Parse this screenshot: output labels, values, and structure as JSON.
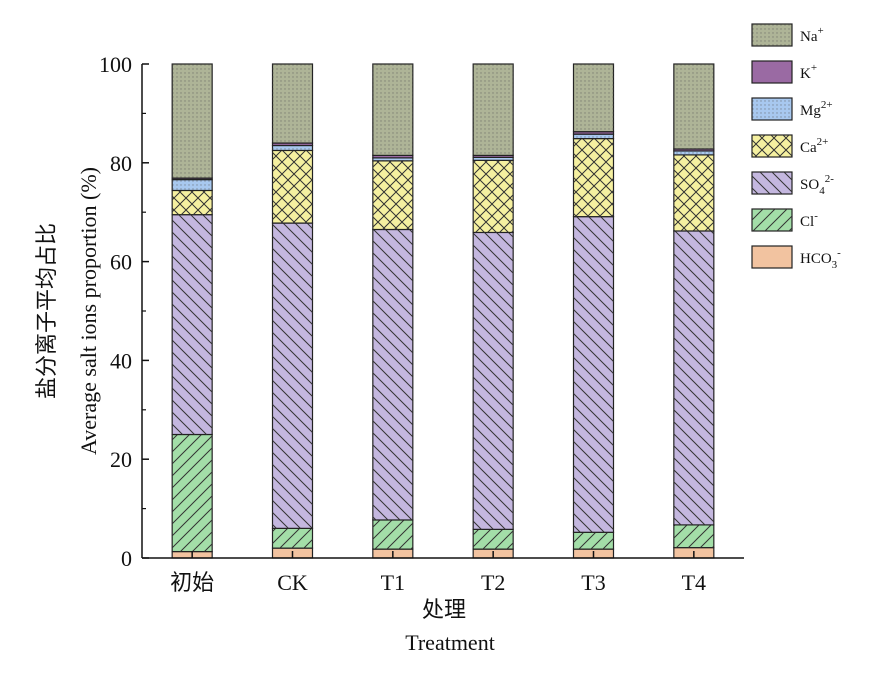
{
  "chart_data": {
    "type": "bar",
    "stacked": true,
    "categories": [
      "初始",
      "CK",
      "T1",
      "T2",
      "T3",
      "T4"
    ],
    "series": [
      {
        "name": "HCO3-",
        "label_base": "HCO",
        "label_sub": "3",
        "label_sup": "-",
        "color": "#f2c3a0",
        "pattern": "none",
        "values": [
          1.3,
          2.0,
          1.8,
          1.8,
          1.8,
          2.1
        ]
      },
      {
        "name": "Cl-",
        "label_base": "Cl",
        "label_sub": "",
        "label_sup": "-",
        "color": "#a3dea8",
        "pattern": "diag-up",
        "values": [
          23.7,
          4.0,
          5.9,
          4.0,
          3.4,
          4.6
        ]
      },
      {
        "name": "SO42-",
        "label_base": "SO",
        "label_sub": "4",
        "label_sup": "2-",
        "color": "#c4b7df",
        "pattern": "diag-down",
        "values": [
          44.5,
          61.8,
          58.8,
          60.1,
          63.9,
          59.5
        ]
      },
      {
        "name": "Ca2+",
        "label_base": "Ca",
        "label_sub": "",
        "label_sup": "2+",
        "color": "#f5f0a0",
        "pattern": "cross",
        "values": [
          4.9,
          14.7,
          13.9,
          14.6,
          15.8,
          15.4
        ]
      },
      {
        "name": "Mg2+",
        "label_base": "Mg",
        "label_sub": "",
        "label_sup": "2+",
        "color": "#a8c8ef",
        "pattern": "dots",
        "values": [
          2.2,
          1.0,
          0.6,
          0.6,
          0.9,
          0.8
        ]
      },
      {
        "name": "K+",
        "label_base": "K",
        "label_sub": "",
        "label_sup": "+",
        "color": "#9a6aa3",
        "pattern": "none",
        "values": [
          0.3,
          0.5,
          0.5,
          0.4,
          0.5,
          0.4
        ]
      },
      {
        "name": "Na+",
        "label_base": "Na",
        "label_sub": "",
        "label_sup": "+",
        "color": "#aeb497",
        "pattern": "dots",
        "values": [
          23.1,
          16.0,
          18.5,
          18.5,
          13.7,
          17.2
        ]
      }
    ],
    "ylim": [
      0,
      100
    ],
    "yticks": [
      0,
      20,
      40,
      60,
      80,
      100
    ],
    "ylabel_zh": "盐分离子平均占比",
    "ylabel_en": "Average salt ions proportion (%)",
    "xlabel_zh": "处理",
    "xlabel_en": "Treatment",
    "grid": false,
    "legend_position": "top-right"
  }
}
